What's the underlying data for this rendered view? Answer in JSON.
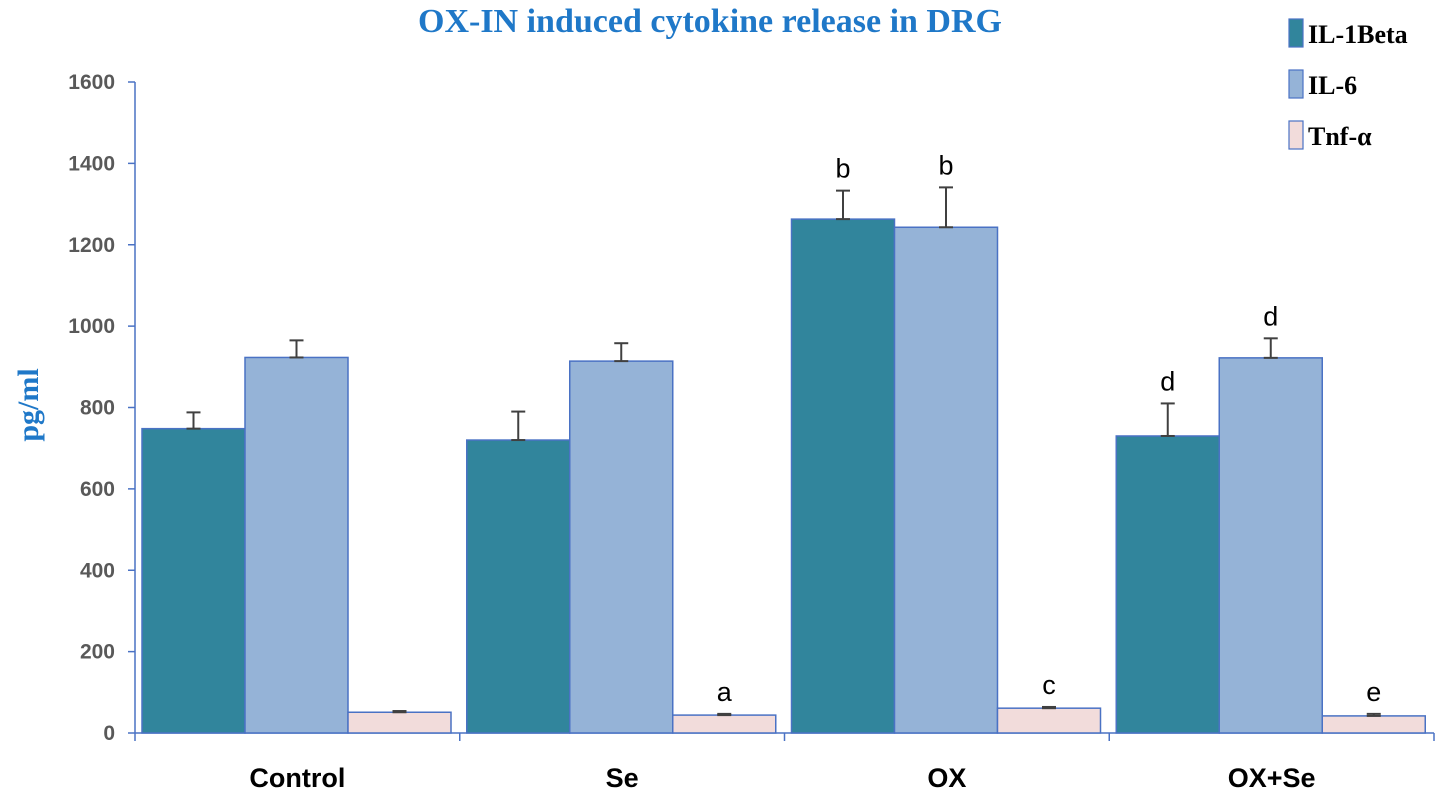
{
  "chart_data": {
    "type": "bar",
    "title": "OX-IN induced cytokine release in DRG",
    "xlabel": "",
    "ylabel": "pg/ml",
    "ylim": [
      0,
      1600
    ],
    "yticks": [
      0,
      200,
      400,
      600,
      800,
      1000,
      1200,
      1400,
      1600
    ],
    "categories": [
      "Control",
      "Se",
      "OX",
      "OX+Se"
    ],
    "series": [
      {
        "name": "IL-1Beta",
        "color": "#31859c",
        "values": [
          748,
          720,
          1263,
          730
        ],
        "errors": [
          40,
          70,
          70,
          80
        ],
        "annotations": [
          "",
          "",
          "b",
          "d"
        ]
      },
      {
        "name": "IL-6",
        "color": "#95b3d7",
        "values": [
          923,
          914,
          1243,
          922
        ],
        "errors": [
          42,
          44,
          98,
          48
        ],
        "annotations": [
          "",
          "",
          "b",
          "d"
        ]
      },
      {
        "name": "Tnf-α",
        "color": "#f2dcdb",
        "values": [
          51,
          44,
          61,
          42
        ],
        "errors": [
          3,
          3,
          3,
          5
        ],
        "annotations": [
          "",
          "a",
          "c",
          "e"
        ]
      }
    ],
    "grid": false,
    "legend": "top-right"
  }
}
